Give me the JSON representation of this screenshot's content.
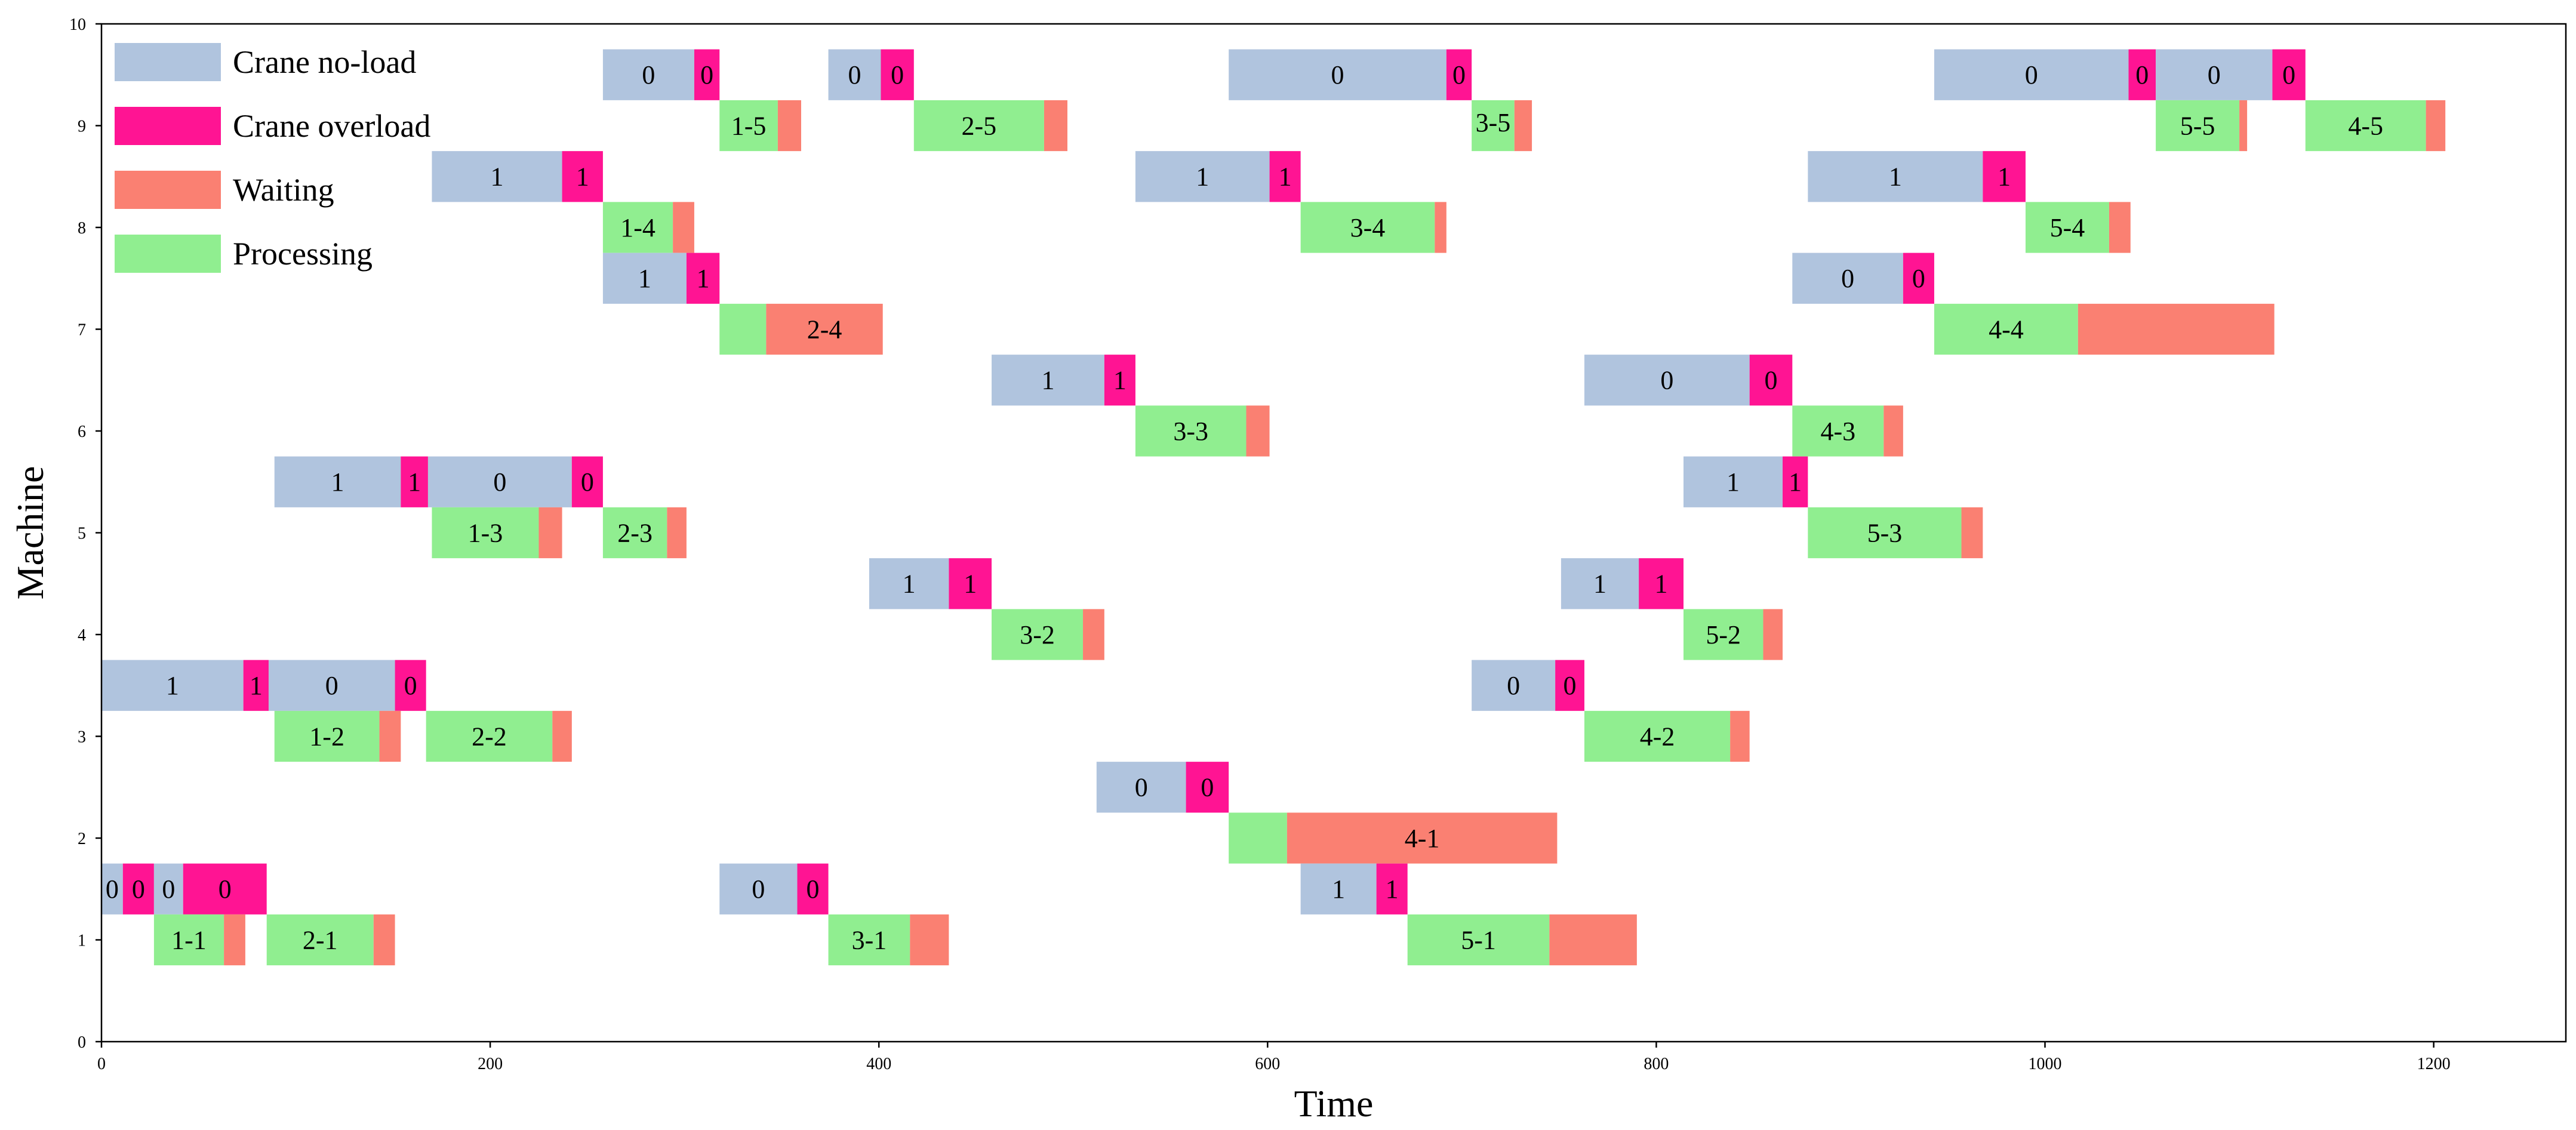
{
  "chart_data": {
    "type": "gantt",
    "title": "",
    "xlabel": "Time",
    "ylabel": "Machine",
    "xlim": [
      0,
      1268
    ],
    "ylim": [
      0,
      10
    ],
    "x_ticks": [
      "0",
      "200",
      "400",
      "600",
      "800",
      "1000",
      "1200"
    ],
    "y_ticks": [
      "0",
      "1",
      "2",
      "3",
      "4",
      "5",
      "6",
      "7",
      "8",
      "9",
      "10"
    ],
    "grid": false,
    "legend_position": "top-left",
    "legend": [
      {
        "key": "noload",
        "label": "Crane no-load",
        "color": "#b0c4de"
      },
      {
        "key": "overload",
        "label": "Crane overload",
        "color": "#ff1493"
      },
      {
        "key": "waiting",
        "label": "Waiting",
        "color": "#fa8072"
      },
      {
        "key": "processing",
        "label": "Processing",
        "color": "#90ee90"
      }
    ],
    "tasks": [
      {
        "row": 9.5,
        "start": 258,
        "end": 305,
        "kind": "noload",
        "label": "0"
      },
      {
        "row": 9.5,
        "start": 305,
        "end": 318,
        "kind": "overload",
        "label": "0"
      },
      {
        "row": 9.5,
        "start": 374,
        "end": 401,
        "kind": "noload",
        "label": "0"
      },
      {
        "row": 9.5,
        "start": 401,
        "end": 418,
        "kind": "overload",
        "label": "0"
      },
      {
        "row": 9.5,
        "start": 580,
        "end": 692,
        "kind": "noload",
        "label": "0"
      },
      {
        "row": 9.5,
        "start": 692,
        "end": 705,
        "kind": "overload",
        "label": "0"
      },
      {
        "row": 9.5,
        "start": 943,
        "end": 1043,
        "kind": "noload",
        "label": "0"
      },
      {
        "row": 9.5,
        "start": 1043,
        "end": 1057,
        "kind": "overload",
        "label": "0"
      },
      {
        "row": 9.5,
        "start": 1057,
        "end": 1117,
        "kind": "noload",
        "label": "0"
      },
      {
        "row": 9.5,
        "start": 1117,
        "end": 1134,
        "kind": "overload",
        "label": "0"
      },
      {
        "row": 9,
        "start": 318,
        "end": 348,
        "kind": "processing",
        "label": "1-5"
      },
      {
        "row": 9,
        "start": 348,
        "end": 360,
        "kind": "waiting",
        "label": ""
      },
      {
        "row": 9,
        "start": 418,
        "end": 485,
        "kind": "processing",
        "label": "2-5"
      },
      {
        "row": 9,
        "start": 485,
        "end": 497,
        "kind": "waiting",
        "label": ""
      },
      {
        "row": 9,
        "start": 705,
        "end": 727,
        "kind": "processing",
        "label": "3-5"
      },
      {
        "row": 9,
        "start": 727,
        "end": 736,
        "kind": "waiting",
        "label": ""
      },
      {
        "row": 9,
        "start": 1057,
        "end": 1100,
        "kind": "processing",
        "label": "5-5"
      },
      {
        "row": 9,
        "start": 1100,
        "end": 1104,
        "kind": "waiting",
        "label": ""
      },
      {
        "row": 9,
        "start": 1134,
        "end": 1196,
        "kind": "processing",
        "label": "4-5"
      },
      {
        "row": 9,
        "start": 1196,
        "end": 1206,
        "kind": "waiting",
        "label": ""
      },
      {
        "row": 8.5,
        "start": 170,
        "end": 237,
        "kind": "noload",
        "label": "1"
      },
      {
        "row": 8.5,
        "start": 237,
        "end": 258,
        "kind": "overload",
        "label": "1"
      },
      {
        "row": 8.5,
        "start": 532,
        "end": 601,
        "kind": "noload",
        "label": "1"
      },
      {
        "row": 8.5,
        "start": 601,
        "end": 617,
        "kind": "overload",
        "label": "1"
      },
      {
        "row": 8.5,
        "start": 878,
        "end": 968,
        "kind": "noload",
        "label": "1"
      },
      {
        "row": 8.5,
        "start": 968,
        "end": 990,
        "kind": "overload",
        "label": "1"
      },
      {
        "row": 8,
        "start": 258,
        "end": 294,
        "kind": "processing",
        "label": "1-4"
      },
      {
        "row": 8,
        "start": 294,
        "end": 305,
        "kind": "waiting",
        "label": ""
      },
      {
        "row": 8,
        "start": 617,
        "end": 686,
        "kind": "processing",
        "label": "3-4"
      },
      {
        "row": 8,
        "start": 686,
        "end": 692,
        "kind": "waiting",
        "label": ""
      },
      {
        "row": 8,
        "start": 990,
        "end": 1033,
        "kind": "processing",
        "label": "5-4"
      },
      {
        "row": 8,
        "start": 1033,
        "end": 1044,
        "kind": "waiting",
        "label": ""
      },
      {
        "row": 7.5,
        "start": 258,
        "end": 301,
        "kind": "noload",
        "label": "1"
      },
      {
        "row": 7.5,
        "start": 301,
        "end": 318,
        "kind": "overload",
        "label": "1"
      },
      {
        "row": 7.5,
        "start": 870,
        "end": 927,
        "kind": "noload",
        "label": "0"
      },
      {
        "row": 7.5,
        "start": 927,
        "end": 943,
        "kind": "overload",
        "label": "0"
      },
      {
        "row": 7,
        "start": 318,
        "end": 342,
        "kind": "processing",
        "label": ""
      },
      {
        "row": 7,
        "start": 342,
        "end": 402,
        "kind": "waiting",
        "label": "2-4"
      },
      {
        "row": 7,
        "start": 943,
        "end": 1017,
        "kind": "processing",
        "label": "4-4"
      },
      {
        "row": 7,
        "start": 1017,
        "end": 1118,
        "kind": "waiting",
        "label": ""
      },
      {
        "row": 6.5,
        "start": 458,
        "end": 516,
        "kind": "noload",
        "label": "1"
      },
      {
        "row": 6.5,
        "start": 516,
        "end": 532,
        "kind": "overload",
        "label": "1"
      },
      {
        "row": 6.5,
        "start": 763,
        "end": 848,
        "kind": "noload",
        "label": "0"
      },
      {
        "row": 6.5,
        "start": 848,
        "end": 870,
        "kind": "overload",
        "label": "0"
      },
      {
        "row": 6,
        "start": 532,
        "end": 589,
        "kind": "processing",
        "label": "3-3"
      },
      {
        "row": 6,
        "start": 589,
        "end": 601,
        "kind": "waiting",
        "label": ""
      },
      {
        "row": 6,
        "start": 870,
        "end": 917,
        "kind": "processing",
        "label": "4-3"
      },
      {
        "row": 6,
        "start": 917,
        "end": 927,
        "kind": "waiting",
        "label": ""
      },
      {
        "row": 5.5,
        "start": 89,
        "end": 154,
        "kind": "noload",
        "label": "1"
      },
      {
        "row": 5.5,
        "start": 154,
        "end": 168,
        "kind": "overload",
        "label": "1"
      },
      {
        "row": 5.5,
        "start": 168,
        "end": 242,
        "kind": "noload",
        "label": "0"
      },
      {
        "row": 5.5,
        "start": 242,
        "end": 258,
        "kind": "overload",
        "label": "0"
      },
      {
        "row": 5.5,
        "start": 814,
        "end": 865,
        "kind": "noload",
        "label": "1"
      },
      {
        "row": 5.5,
        "start": 865,
        "end": 878,
        "kind": "overload",
        "label": "1"
      },
      {
        "row": 5,
        "start": 170,
        "end": 225,
        "kind": "processing",
        "label": "1-3"
      },
      {
        "row": 5,
        "start": 225,
        "end": 237,
        "kind": "waiting",
        "label": ""
      },
      {
        "row": 5,
        "start": 258,
        "end": 291,
        "kind": "processing",
        "label": "2-3"
      },
      {
        "row": 5,
        "start": 291,
        "end": 301,
        "kind": "waiting",
        "label": ""
      },
      {
        "row": 5,
        "start": 878,
        "end": 957,
        "kind": "processing",
        "label": "5-3"
      },
      {
        "row": 5,
        "start": 957,
        "end": 968,
        "kind": "waiting",
        "label": ""
      },
      {
        "row": 4.5,
        "start": 395,
        "end": 436,
        "kind": "noload",
        "label": "1"
      },
      {
        "row": 4.5,
        "start": 436,
        "end": 458,
        "kind": "overload",
        "label": "1"
      },
      {
        "row": 4.5,
        "start": 751,
        "end": 791,
        "kind": "noload",
        "label": "1"
      },
      {
        "row": 4.5,
        "start": 791,
        "end": 814,
        "kind": "overload",
        "label": "1"
      },
      {
        "row": 4,
        "start": 458,
        "end": 505,
        "kind": "processing",
        "label": "3-2"
      },
      {
        "row": 4,
        "start": 505,
        "end": 516,
        "kind": "waiting",
        "label": ""
      },
      {
        "row": 4,
        "start": 814,
        "end": 855,
        "kind": "processing",
        "label": "5-2"
      },
      {
        "row": 4,
        "start": 855,
        "end": 865,
        "kind": "waiting",
        "label": ""
      },
      {
        "row": 3.5,
        "start": 0,
        "end": 73,
        "kind": "noload",
        "label": "1"
      },
      {
        "row": 3.5,
        "start": 73,
        "end": 86,
        "kind": "overload",
        "label": "1"
      },
      {
        "row": 3.5,
        "start": 86,
        "end": 151,
        "kind": "noload",
        "label": "0"
      },
      {
        "row": 3.5,
        "start": 151,
        "end": 167,
        "kind": "overload",
        "label": "0"
      },
      {
        "row": 3.5,
        "start": 705,
        "end": 748,
        "kind": "noload",
        "label": "0"
      },
      {
        "row": 3.5,
        "start": 748,
        "end": 763,
        "kind": "overload",
        "label": "0"
      },
      {
        "row": 3,
        "start": 89,
        "end": 143,
        "kind": "processing",
        "label": "1-2"
      },
      {
        "row": 3,
        "start": 143,
        "end": 154,
        "kind": "waiting",
        "label": ""
      },
      {
        "row": 3,
        "start": 167,
        "end": 232,
        "kind": "processing",
        "label": "2-2"
      },
      {
        "row": 3,
        "start": 232,
        "end": 242,
        "kind": "waiting",
        "label": ""
      },
      {
        "row": 3,
        "start": 763,
        "end": 838,
        "kind": "processing",
        "label": "4-2"
      },
      {
        "row": 3,
        "start": 838,
        "end": 848,
        "kind": "waiting",
        "label": ""
      },
      {
        "row": 2.5,
        "start": 512,
        "end": 558,
        "kind": "noload",
        "label": "0"
      },
      {
        "row": 2.5,
        "start": 558,
        "end": 580,
        "kind": "overload",
        "label": "0"
      },
      {
        "row": 2,
        "start": 580,
        "end": 610,
        "kind": "processing",
        "label": ""
      },
      {
        "row": 2,
        "start": 610,
        "end": 749,
        "kind": "waiting",
        "label": "4-1"
      },
      {
        "row": 1.5,
        "start": 0,
        "end": 11,
        "kind": "noload",
        "label": "0"
      },
      {
        "row": 1.5,
        "start": 11,
        "end": 27,
        "kind": "overload",
        "label": "0"
      },
      {
        "row": 1.5,
        "start": 27,
        "end": 42,
        "kind": "noload",
        "label": "0"
      },
      {
        "row": 1.5,
        "start": 42,
        "end": 85,
        "kind": "overload",
        "label": "0"
      },
      {
        "row": 1.5,
        "start": 318,
        "end": 358,
        "kind": "noload",
        "label": "0"
      },
      {
        "row": 1.5,
        "start": 358,
        "end": 374,
        "kind": "overload",
        "label": "0"
      },
      {
        "row": 1.5,
        "start": 617,
        "end": 656,
        "kind": "noload",
        "label": "1"
      },
      {
        "row": 1.5,
        "start": 656,
        "end": 672,
        "kind": "overload",
        "label": "1"
      },
      {
        "row": 1,
        "start": 27,
        "end": 63,
        "kind": "processing",
        "label": "1-1"
      },
      {
        "row": 1,
        "start": 63,
        "end": 74,
        "kind": "waiting",
        "label": ""
      },
      {
        "row": 1,
        "start": 85,
        "end": 140,
        "kind": "processing",
        "label": "2-1"
      },
      {
        "row": 1,
        "start": 140,
        "end": 151,
        "kind": "waiting",
        "label": ""
      },
      {
        "row": 1,
        "start": 374,
        "end": 416,
        "kind": "processing",
        "label": "3-1"
      },
      {
        "row": 1,
        "start": 416,
        "end": 436,
        "kind": "waiting",
        "label": ""
      },
      {
        "row": 1,
        "start": 672,
        "end": 745,
        "kind": "processing",
        "label": "5-1"
      },
      {
        "row": 1,
        "start": 745,
        "end": 790,
        "kind": "waiting",
        "label": ""
      }
    ]
  }
}
